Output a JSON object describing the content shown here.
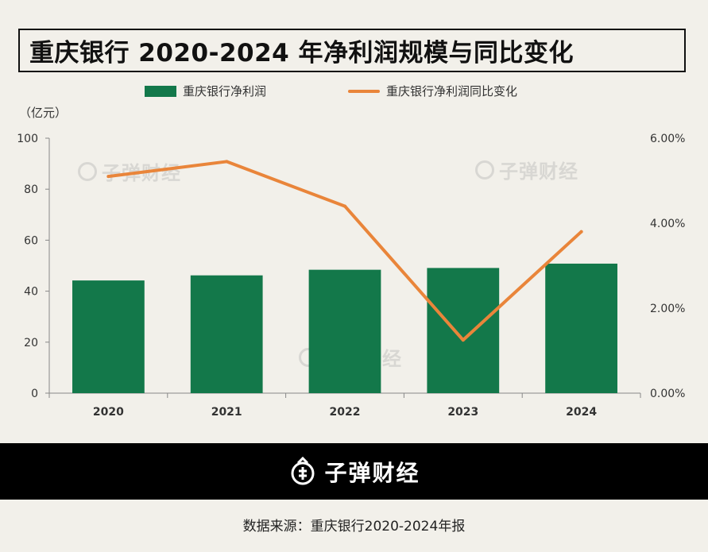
{
  "title": "重庆银行 2020-2024 年净利润规模与同比变化",
  "legend": {
    "bar_label": "重庆银行净利润",
    "line_label": "重庆银行净利润同比变化"
  },
  "unit_label": "（亿元）",
  "watermark_text": "子弹财经",
  "footer": {
    "brand": "子弹财经"
  },
  "source": "数据来源：重庆银行2020-2024年报",
  "colors": {
    "bar": "#13784a",
    "line": "#e9853a",
    "background": "#f2f0ea"
  },
  "chart_data": {
    "type": "bar",
    "categories": [
      "2020",
      "2021",
      "2022",
      "2023",
      "2024"
    ],
    "series": [
      {
        "name": "重庆银行净利润",
        "type": "bar",
        "axis": "left",
        "values": [
          44.2,
          46.2,
          48.4,
          49.1,
          50.8
        ]
      },
      {
        "name": "重庆银行净利润同比变化",
        "type": "line",
        "axis": "right",
        "values": [
          5.1,
          5.45,
          4.4,
          1.25,
          3.8
        ]
      }
    ],
    "y_left": {
      "range": [
        0,
        100
      ],
      "ticks": [
        "0",
        "20",
        "40",
        "60",
        "80",
        "100"
      ]
    },
    "y_right": {
      "range": [
        0,
        6
      ],
      "ticks": [
        "0.00%",
        "2.00%",
        "4.00%",
        "6.00%"
      ]
    },
    "title": "重庆银行 2020-2024 年净利润规模与同比变化",
    "ylabel": "（亿元）"
  }
}
